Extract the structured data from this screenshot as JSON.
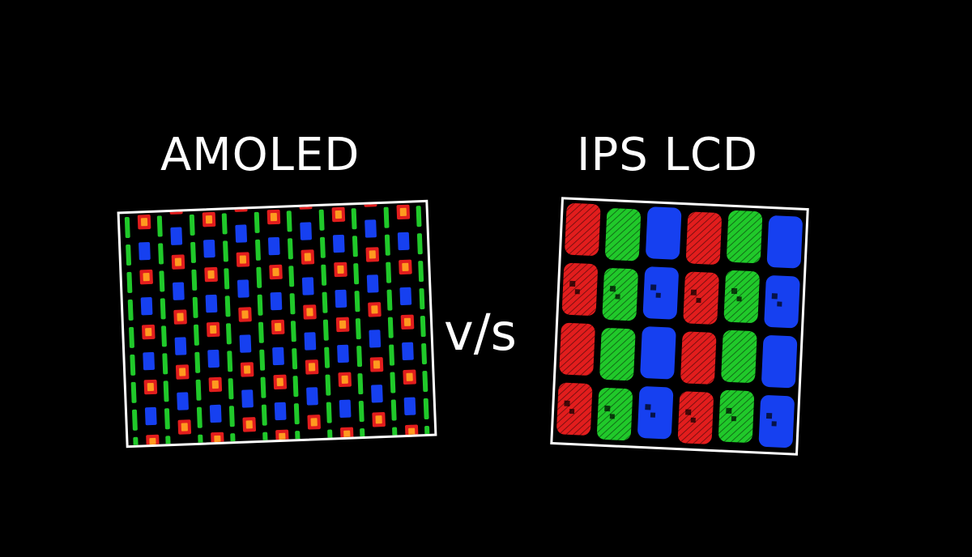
{
  "labels": {
    "left_title": "AMOLED",
    "right_title": "IPS LCD",
    "versus": "v/s"
  },
  "colors": {
    "background": "#000000",
    "text": "#ffffff",
    "frame": "#ffffff",
    "subpixel_red": "#e21d1d",
    "subpixel_green": "#20c92a",
    "subpixel_blue": "#1640f0",
    "subpixel_orange": "#ff9a1f"
  }
}
